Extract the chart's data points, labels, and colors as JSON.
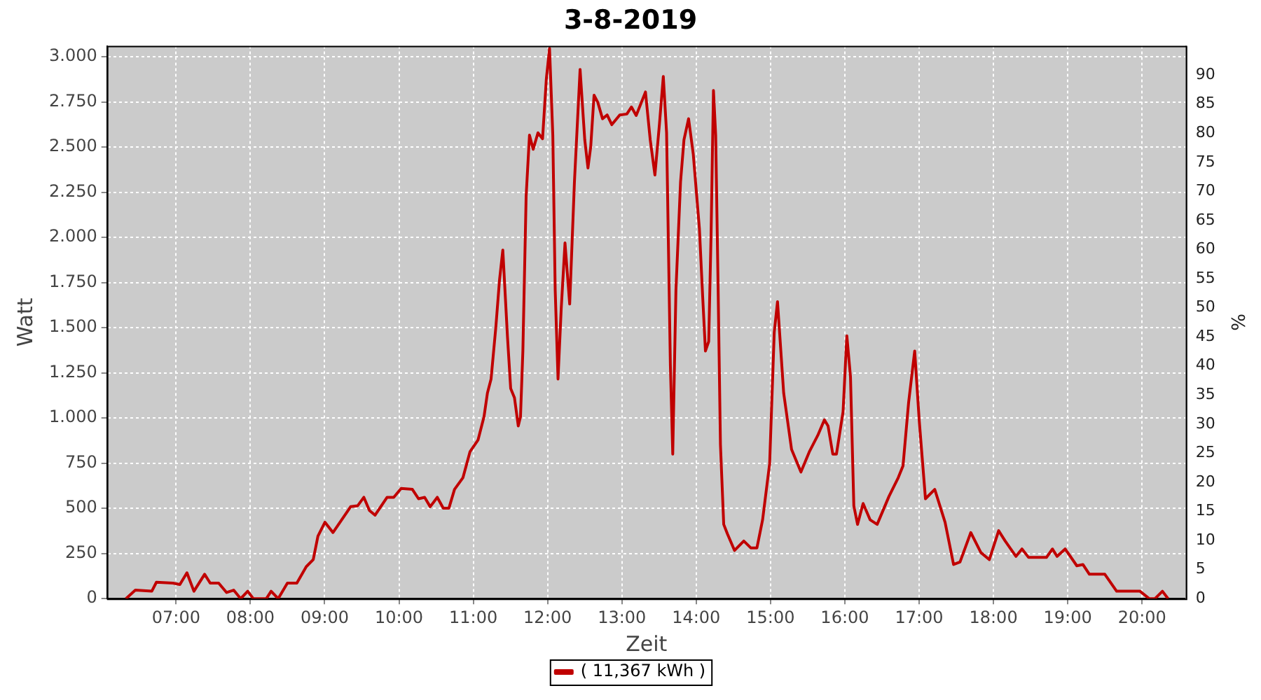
{
  "chart_data": {
    "type": "line",
    "title": "3-8-2019",
    "xlabel": "Zeit",
    "ylabel": "Watt",
    "y2label": "%",
    "x": [
      6.325,
      6.452,
      6.673,
      6.735,
      6.957,
      7.051,
      7.146,
      7.24,
      7.384,
      7.459,
      7.573,
      7.68,
      7.775,
      7.869,
      7.964,
      8.039,
      8.215,
      8.279,
      8.374,
      8.498,
      8.625,
      8.752,
      8.846,
      8.909,
      9.003,
      9.111,
      9.349,
      9.443,
      9.527,
      9.602,
      9.678,
      9.84,
      9.929,
      10.029,
      10.18,
      10.263,
      10.345,
      10.42,
      10.515,
      10.596,
      10.672,
      10.747,
      10.861,
      10.955,
      11.063,
      11.144,
      11.19,
      11.239,
      11.303,
      11.352,
      11.397,
      11.46,
      11.503,
      11.554,
      11.605,
      11.635,
      11.667,
      11.711,
      11.756,
      11.806,
      11.87,
      11.932,
      11.983,
      12.026,
      12.07,
      12.102,
      12.14,
      12.183,
      12.234,
      12.297,
      12.361,
      12.437,
      12.5,
      12.543,
      12.58,
      12.625,
      12.675,
      12.739,
      12.801,
      12.864,
      12.971,
      13.066,
      13.128,
      13.192,
      13.317,
      13.381,
      13.444,
      13.506,
      13.557,
      13.601,
      13.652,
      13.684,
      13.727,
      13.789,
      13.835,
      13.897,
      13.96,
      14.043,
      14.087,
      14.124,
      14.168,
      14.2,
      14.232,
      14.262,
      14.294,
      14.326,
      14.37,
      14.42,
      14.515,
      14.64,
      14.734,
      14.817,
      14.893,
      14.988,
      15.05,
      15.094,
      15.177,
      15.283,
      15.409,
      15.522,
      15.636,
      15.725,
      15.774,
      15.838,
      15.887,
      15.976,
      16.027,
      16.076,
      16.121,
      16.171,
      16.246,
      16.341,
      16.435,
      16.594,
      16.719,
      16.783,
      16.858,
      16.94,
      17.002,
      17.085,
      17.21,
      17.349,
      17.463,
      17.55,
      17.695,
      17.831,
      17.945,
      18.07,
      18.158,
      18.303,
      18.384,
      18.473,
      18.713,
      18.794,
      18.857,
      18.965,
      19.122,
      19.204,
      19.291,
      19.499,
      19.658,
      19.972,
      20.098,
      20.174,
      20.274,
      20.35
    ],
    "series": [
      {
        "name": "( 11,367 kWh )",
        "color": "#c00000",
        "values": [
          0,
          47,
          41,
          91,
          86,
          78,
          143,
          41,
          135,
          86,
          86,
          34,
          47,
          0,
          41,
          0,
          0,
          41,
          0,
          86,
          86,
          177,
          216,
          346,
          423,
          366,
          509,
          514,
          561,
          488,
          462,
          561,
          561,
          610,
          605,
          553,
          561,
          509,
          561,
          501,
          501,
          605,
          670,
          813,
          878,
          1007,
          1138,
          1216,
          1502,
          1761,
          1930,
          1449,
          1163,
          1112,
          956,
          1007,
          1371,
          2229,
          2566,
          2488,
          2579,
          2546,
          2878,
          3047,
          2566,
          1709,
          1216,
          1605,
          1969,
          1631,
          2307,
          2930,
          2540,
          2384,
          2501,
          2787,
          2748,
          2657,
          2678,
          2624,
          2678,
          2683,
          2722,
          2675,
          2805,
          2540,
          2345,
          2632,
          2891,
          2579,
          1294,
          800,
          1709,
          2307,
          2540,
          2657,
          2462,
          2047,
          1670,
          1371,
          1424,
          2021,
          2813,
          2566,
          1735,
          852,
          411,
          358,
          267,
          319,
          281,
          281,
          436,
          748,
          1475,
          1644,
          1138,
          826,
          701,
          813,
          904,
          990,
          956,
          800,
          800,
          1034,
          1455,
          1229,
          514,
          411,
          527,
          436,
          411,
          566,
          670,
          735,
          1085,
          1371,
          982,
          553,
          605,
          423,
          189,
          203,
          366,
          255,
          216,
          376,
          319,
          234,
          275,
          228,
          228,
          275,
          234,
          275,
          182,
          189,
          135,
          135,
          41,
          41,
          0,
          0,
          41,
          0
        ]
      }
    ],
    "xlim": [
      6.07,
      20.59
    ],
    "xticks": [
      {
        "value": 7,
        "label": "07:00"
      },
      {
        "value": 8,
        "label": "08:00"
      },
      {
        "value": 9,
        "label": "09:00"
      },
      {
        "value": 10,
        "label": "10:00"
      },
      {
        "value": 11,
        "label": "11:00"
      },
      {
        "value": 12,
        "label": "12:00"
      },
      {
        "value": 13,
        "label": "13:00"
      },
      {
        "value": 14,
        "label": "14:00"
      },
      {
        "value": 15,
        "label": "15:00"
      },
      {
        "value": 16,
        "label": "16:00"
      },
      {
        "value": 17,
        "label": "17:00"
      },
      {
        "value": 18,
        "label": "18:00"
      },
      {
        "value": 19,
        "label": "19:00"
      },
      {
        "value": 20,
        "label": "20:00"
      }
    ],
    "ylim": [
      0,
      3060
    ],
    "yticks": [
      0,
      250,
      500,
      750,
      {
        "value": 1000,
        "label": "1.000"
      },
      {
        "value": 1250,
        "label": "1.250"
      },
      {
        "value": 1500,
        "label": "1.500"
      },
      {
        "value": 1750,
        "label": "1.750"
      },
      {
        "value": 2000,
        "label": "2.000"
      },
      {
        "value": 2250,
        "label": "2.250"
      },
      {
        "value": 2500,
        "label": "2.500"
      },
      {
        "value": 2750,
        "label": "2.750"
      },
      {
        "value": 3000,
        "label": "3.000"
      }
    ],
    "y2lim": [
      0,
      95
    ],
    "y2ticks": [
      0,
      5,
      10,
      15,
      20,
      25,
      30,
      35,
      40,
      45,
      50,
      55,
      60,
      65,
      70,
      75,
      80,
      85,
      90
    ],
    "grid": true,
    "legend": "bottom",
    "marker": "none",
    "line_style": "solid"
  }
}
